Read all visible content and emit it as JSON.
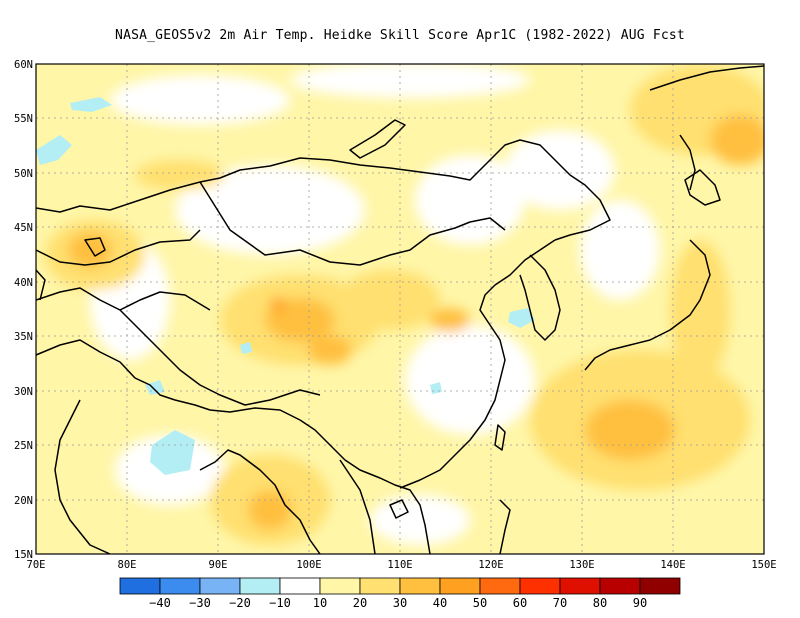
{
  "title": "NASA_GEOS5v2  2m Air Temp. Heidke Skill Score Apr1C (1982-2022) AUG Fcst",
  "map": {
    "lon_range": [
      70,
      150
    ],
    "lat_range": [
      15,
      60
    ],
    "lon_ticks": [
      "70E",
      "80E",
      "90E",
      "100E",
      "110E",
      "120E",
      "130E",
      "140E",
      "150E"
    ],
    "lat_ticks": [
      "15N",
      "20N",
      "25N",
      "30N",
      "35N",
      "40N",
      "45N",
      "50N",
      "55N",
      "60N"
    ]
  },
  "colorbar": {
    "colors": [
      "#1f6fe0",
      "#3c8cf0",
      "#78b4f5",
      "#b4eef5",
      "#ffffff",
      "#fff6a8",
      "#ffe070",
      "#ffc040",
      "#ffa020",
      "#ff6a10",
      "#ff3000",
      "#e01000",
      "#b80000",
      "#900000"
    ],
    "labels": [
      "−40",
      "−30",
      "−20",
      "−10",
      "10",
      "20",
      "30",
      "40",
      "50",
      "60",
      "70",
      "80",
      "90"
    ]
  }
}
